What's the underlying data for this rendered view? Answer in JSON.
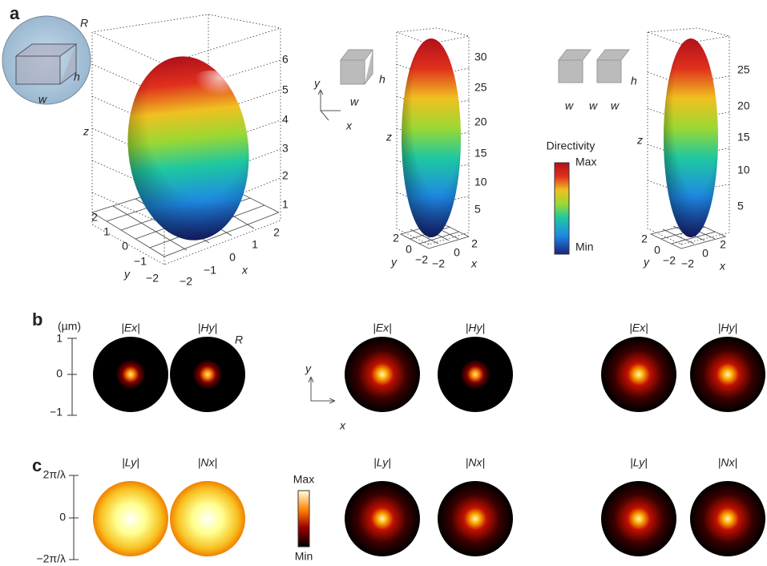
{
  "panel_labels": [
    "a",
    "b",
    "c"
  ],
  "panel_a": {
    "plots": [
      {
        "inset_labels": [
          "R",
          "h",
          "w"
        ],
        "z_label": "z",
        "y_label": "y",
        "x_label": "x",
        "z_ticks": [
          "6",
          "5",
          "4",
          "3",
          "2",
          "1"
        ],
        "y_ticks": [
          "2",
          "1",
          "0",
          "−1",
          "−2"
        ],
        "x_ticks": [
          "−2",
          "−1",
          "0",
          "1",
          "2"
        ]
      },
      {
        "inset_labels": [
          "h",
          "w"
        ],
        "coord_labels": [
          "y",
          "x"
        ],
        "z_label": "z",
        "y_label": "y",
        "x_label": "x",
        "z_ticks": [
          "30",
          "25",
          "20",
          "15",
          "10",
          "5"
        ],
        "y_ticks": [
          "2",
          "0",
          "−2"
        ],
        "x_ticks": [
          "−2",
          "0",
          "2"
        ]
      },
      {
        "inset_labels": [
          "w",
          "w",
          "w",
          "h"
        ],
        "z_label": "z",
        "y_label": "y",
        "x_label": "x",
        "z_ticks": [
          "25",
          "20",
          "15",
          "10",
          "5"
        ],
        "y_ticks": [
          "2",
          "0",
          "−2"
        ],
        "x_ticks": [
          "−2",
          "0",
          "2"
        ]
      }
    ],
    "colorbar": {
      "title": "Directivity",
      "max": "Max",
      "min": "Min"
    }
  },
  "panel_b": {
    "unit": "(µm)",
    "ticks": [
      "1",
      "0",
      "−1"
    ],
    "R": "R",
    "coord_labels": [
      "y",
      "x"
    ],
    "titles": [
      "|Ex|",
      "|Hy|",
      "|Ex|",
      "|Hy|",
      "|Ex|",
      "|Hy|"
    ]
  },
  "panel_c": {
    "ticks": [
      "2π/λ",
      "0",
      "−2π/λ"
    ],
    "titles": [
      "|Ly|",
      "|Nx|",
      "|Ly|",
      "|Nx|",
      "|Ly|",
      "|Nx|"
    ],
    "colorbar": {
      "max": "Max",
      "min": "Min"
    }
  }
}
